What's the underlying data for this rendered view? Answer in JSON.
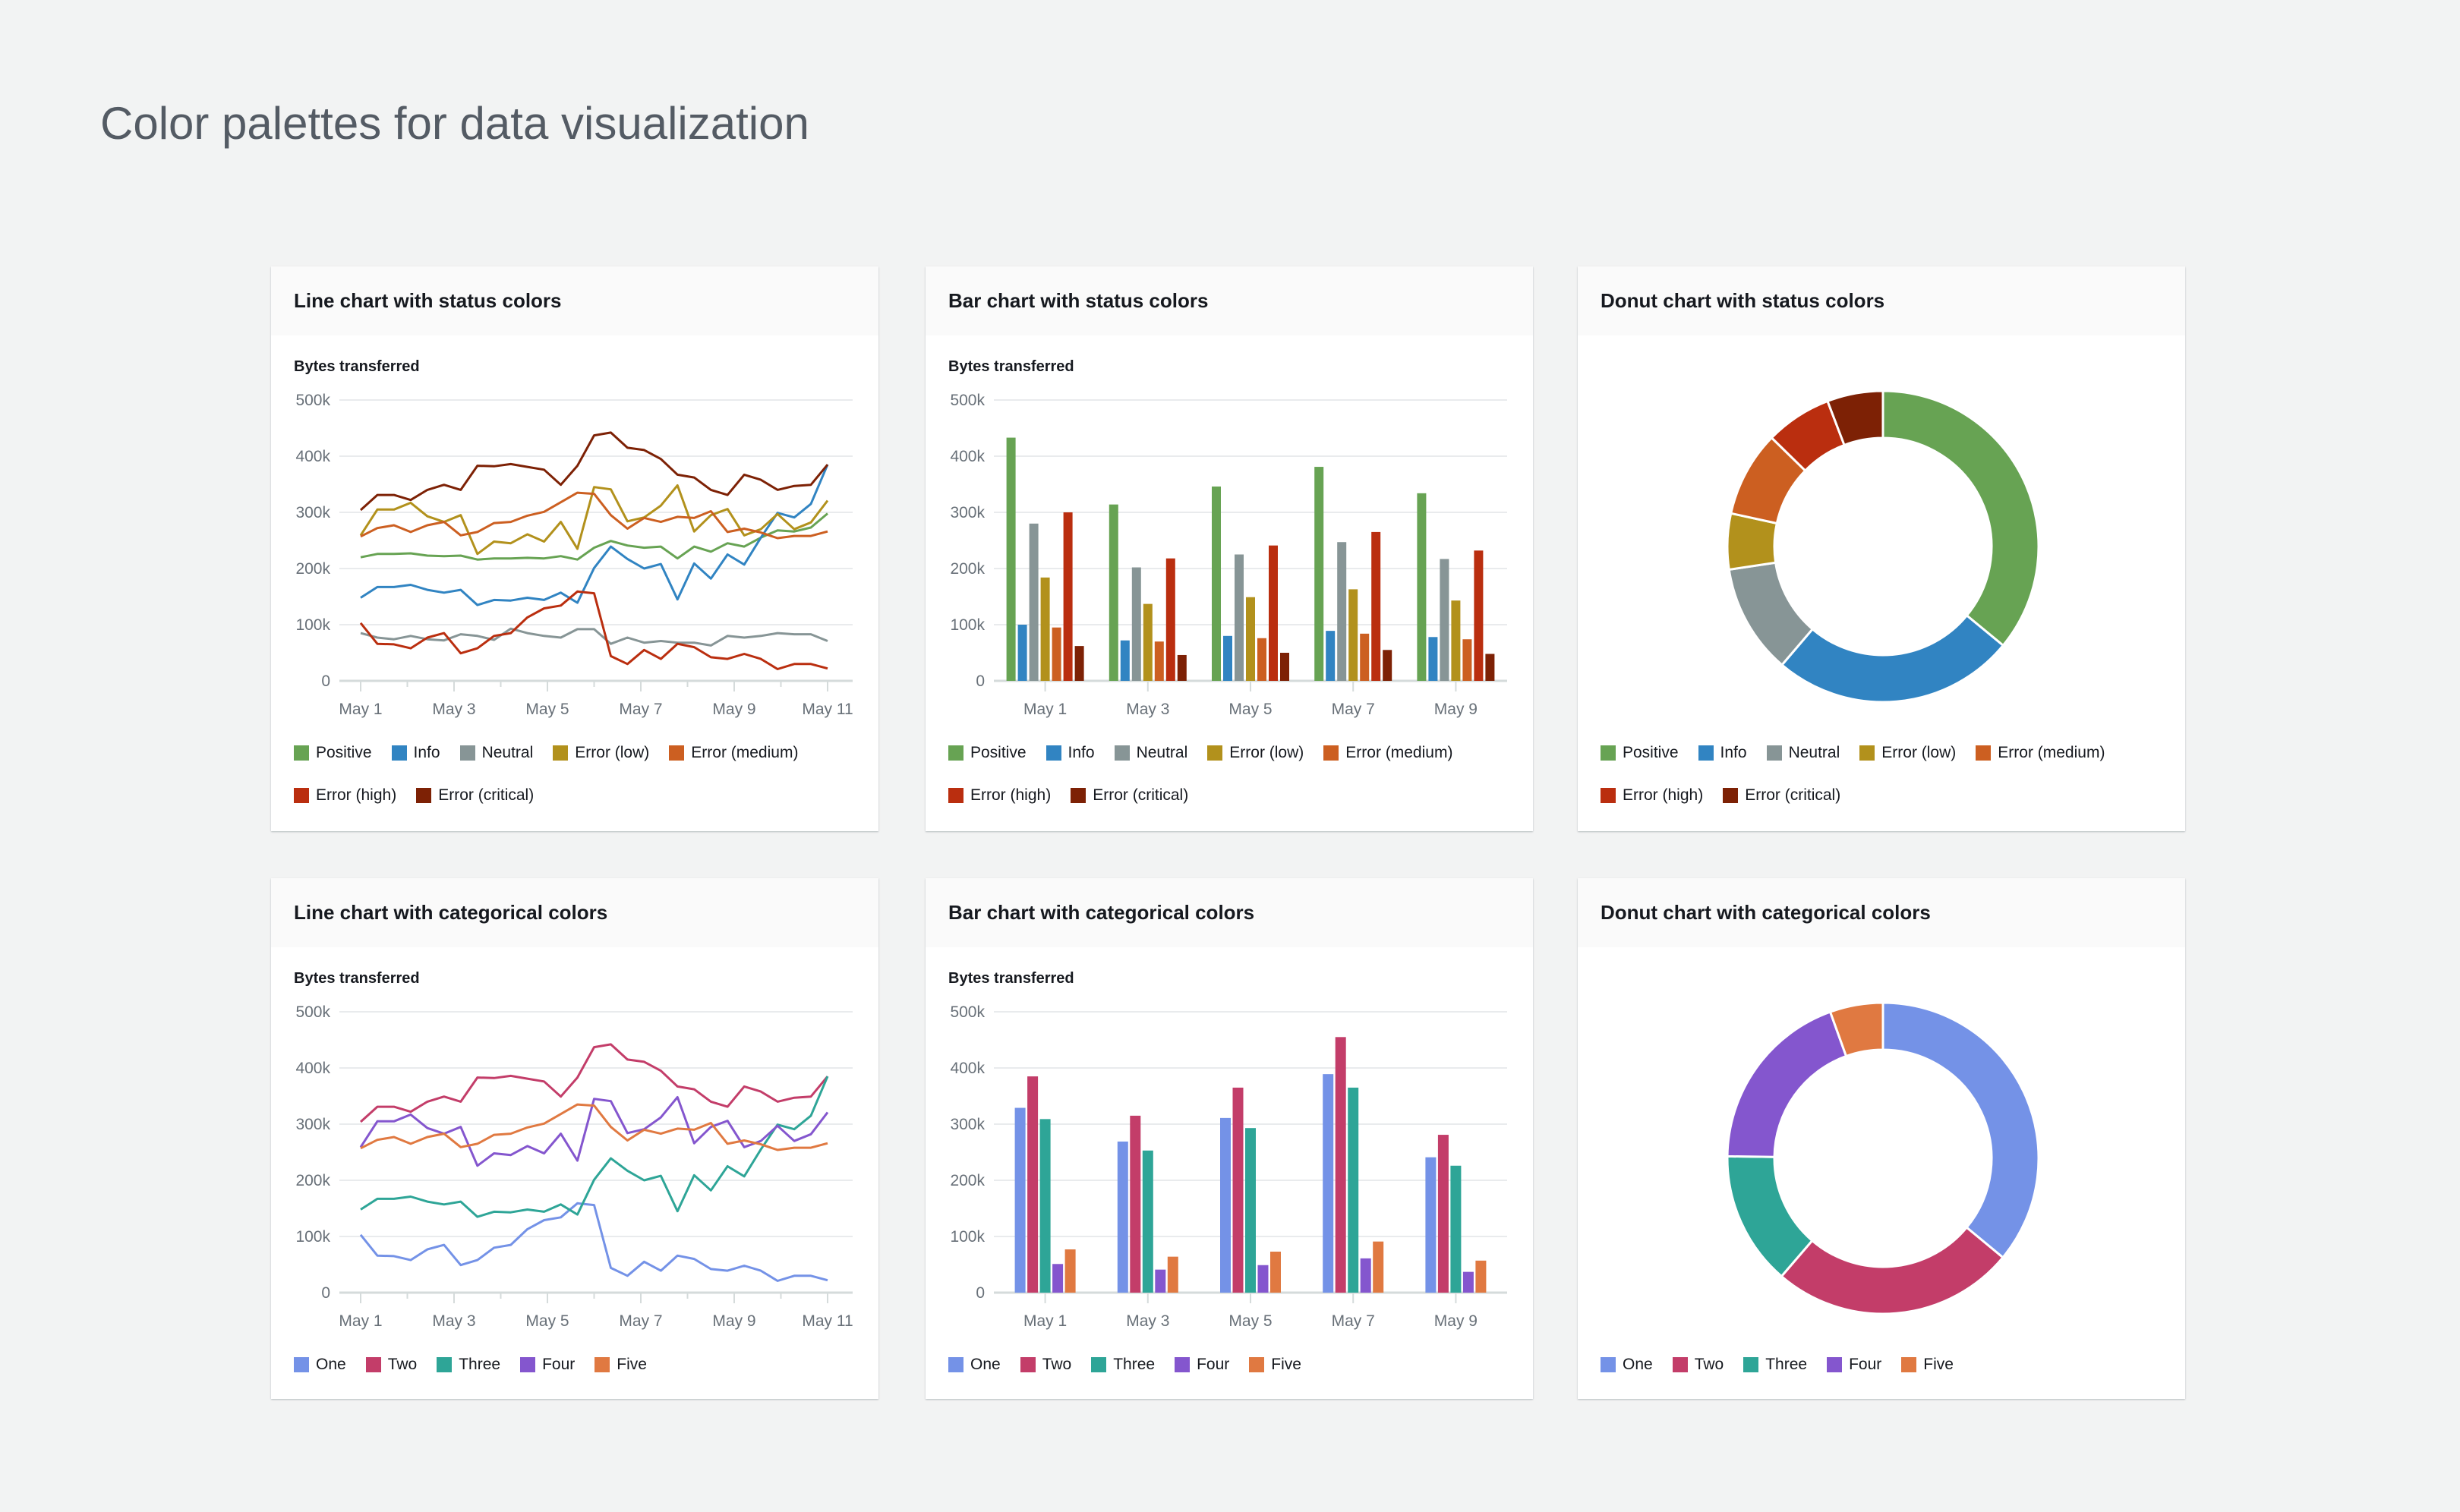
{
  "page_title": "Color palettes for data visualization",
  "palettes": {
    "status": {
      "Positive": "#67a353",
      "Info": "#3184c2",
      "Neutral": "#879596",
      "Error (low)": "#b2911c",
      "Error (medium)": "#cc5f21",
      "Error (high)": "#ba2e0f",
      "Error (critical)": "#7d2105"
    },
    "categorical": {
      "One": "#7492e7",
      "Two": "#c33d69",
      "Three": "#2ea597",
      "Four": "#8456ce",
      "Five": "#e07941"
    }
  },
  "chart_data": [
    {
      "id": "line-status",
      "type": "line",
      "title": "Line chart with status colors",
      "ylabel": "Bytes transferred",
      "ylim": [
        0,
        500000
      ],
      "yticks": [
        "0",
        "100k",
        "200k",
        "300k",
        "400k",
        "500k"
      ],
      "x_range": [
        "May 1",
        "May 11"
      ],
      "xticks": [
        "May 1",
        "May 3",
        "May 5",
        "May 7",
        "May 9",
        "May 11"
      ],
      "grid": true,
      "legend": "bottom",
      "series": [
        {
          "name": "Positive",
          "color": "#67a353",
          "values": [
            220,
            226,
            226,
            227,
            223,
            222,
            223,
            216,
            218,
            218,
            219,
            218,
            222,
            216,
            237,
            249,
            241,
            237,
            239,
            218,
            239,
            230,
            245,
            239,
            255,
            268,
            266,
            273,
            298
          ]
        },
        {
          "name": "Info",
          "color": "#3184c2",
          "values": [
            148,
            167,
            167,
            171,
            162,
            157,
            162,
            135,
            144,
            143,
            148,
            144,
            157,
            139,
            201,
            239,
            217,
            200,
            208,
            145,
            209,
            182,
            225,
            207,
            255,
            299,
            291,
            315,
            385
          ]
        },
        {
          "name": "Neutral",
          "color": "#879596",
          "values": [
            85,
            77,
            74,
            80,
            74,
            72,
            83,
            80,
            73,
            93,
            85,
            80,
            77,
            92,
            92,
            66,
            77,
            68,
            71,
            68,
            68,
            63,
            80,
            77,
            80,
            85,
            83,
            83,
            71
          ]
        },
        {
          "name": "Error (low)",
          "color": "#b2911c",
          "values": [
            259,
            305,
            305,
            317,
            293,
            283,
            295,
            226,
            248,
            245,
            261,
            248,
            283,
            235,
            345,
            341,
            284,
            291,
            312,
            348,
            266,
            295,
            306,
            259,
            270,
            297,
            270,
            282,
            321
          ]
        },
        {
          "name": "Error (medium)",
          "color": "#cc5f21",
          "values": [
            257,
            272,
            277,
            265,
            277,
            283,
            259,
            265,
            281,
            283,
            294,
            301,
            318,
            335,
            333,
            295,
            271,
            290,
            283,
            292,
            290,
            302,
            265,
            271,
            264,
            254,
            258,
            258,
            266
          ]
        },
        {
          "name": "Error (high)",
          "color": "#ba2e0f",
          "values": [
            103,
            66,
            65,
            58,
            77,
            85,
            49,
            58,
            80,
            85,
            113,
            129,
            134,
            159,
            156,
            44,
            30,
            55,
            39,
            66,
            60,
            42,
            39,
            48,
            39,
            21,
            30,
            30,
            22
          ]
        },
        {
          "name": "Error (critical)",
          "color": "#7d2105",
          "values": [
            304,
            331,
            331,
            322,
            340,
            349,
            340,
            383,
            382,
            386,
            381,
            376,
            349,
            383,
            437,
            442,
            415,
            411,
            395,
            367,
            362,
            340,
            331,
            367,
            358,
            340,
            347,
            349,
            385
          ]
        }
      ]
    },
    {
      "id": "bar-status",
      "type": "bar",
      "title": "Bar chart with status colors",
      "ylabel": "Bytes transferred",
      "ylim": [
        0,
        500000
      ],
      "yticks": [
        "0",
        "100k",
        "200k",
        "300k",
        "400k",
        "500k"
      ],
      "categories": [
        "May 1",
        "May 3",
        "May 5",
        "May 7",
        "May 9"
      ],
      "grid": true,
      "legend": "bottom",
      "series": [
        {
          "name": "Positive",
          "color": "#67a353",
          "values": [
            433,
            314,
            346,
            381,
            334
          ]
        },
        {
          "name": "Info",
          "color": "#3184c2",
          "values": [
            100,
            72,
            80,
            89,
            78
          ]
        },
        {
          "name": "Neutral",
          "color": "#879596",
          "values": [
            280,
            202,
            225,
            247,
            217
          ]
        },
        {
          "name": "Error (low)",
          "color": "#b2911c",
          "values": [
            184,
            137,
            149,
            163,
            143
          ]
        },
        {
          "name": "Error (medium)",
          "color": "#cc5f21",
          "values": [
            95,
            70,
            76,
            84,
            74
          ]
        },
        {
          "name": "Error (high)",
          "color": "#ba2e0f",
          "values": [
            300,
            218,
            241,
            265,
            232
          ]
        },
        {
          "name": "Error (critical)",
          "color": "#7d2105",
          "values": [
            62,
            46,
            50,
            55,
            48
          ]
        }
      ]
    },
    {
      "id": "donut-status",
      "type": "pie",
      "title": "Donut chart with status colors",
      "legend": "bottom",
      "series": [
        {
          "name": "Positive",
          "color": "#67a353",
          "value": 36.0
        },
        {
          "name": "Info",
          "color": "#3184c2",
          "value": 25.3
        },
        {
          "name": "Neutral",
          "color": "#879596",
          "value": 11.4
        },
        {
          "name": "Error (low)",
          "color": "#b2911c",
          "value": 5.8
        },
        {
          "name": "Error (medium)",
          "color": "#cc5f21",
          "value": 8.9
        },
        {
          "name": "Error (high)",
          "color": "#ba2e0f",
          "value": 6.9
        },
        {
          "name": "Error (critical)",
          "color": "#7d2105",
          "value": 5.8
        }
      ]
    },
    {
      "id": "line-cat",
      "type": "line",
      "title": "Line chart with categorical colors",
      "ylabel": "Bytes transferred",
      "ylim": [
        0,
        500000
      ],
      "yticks": [
        "0",
        "100k",
        "200k",
        "300k",
        "400k",
        "500k"
      ],
      "x_range": [
        "May 1",
        "May 11"
      ],
      "xticks": [
        "May 1",
        "May 3",
        "May 5",
        "May 7",
        "May 9",
        "May 11"
      ],
      "grid": true,
      "legend": "bottom",
      "series": [
        {
          "name": "One",
          "color": "#7492e7",
          "values": [
            103,
            66,
            65,
            58,
            77,
            85,
            49,
            58,
            80,
            85,
            113,
            129,
            134,
            159,
            156,
            44,
            30,
            55,
            39,
            66,
            60,
            42,
            39,
            48,
            39,
            21,
            30,
            30,
            22
          ]
        },
        {
          "name": "Two",
          "color": "#c33d69",
          "values": [
            304,
            331,
            331,
            322,
            340,
            349,
            340,
            383,
            382,
            386,
            381,
            376,
            349,
            383,
            437,
            442,
            415,
            411,
            395,
            367,
            362,
            340,
            331,
            367,
            358,
            340,
            347,
            349,
            385
          ]
        },
        {
          "name": "Three",
          "color": "#2ea597",
          "values": [
            148,
            167,
            167,
            171,
            162,
            157,
            162,
            135,
            144,
            143,
            148,
            144,
            157,
            139,
            201,
            239,
            217,
            200,
            208,
            145,
            209,
            182,
            225,
            207,
            255,
            299,
            291,
            315,
            385
          ]
        },
        {
          "name": "Four",
          "color": "#8456ce",
          "values": [
            259,
            305,
            305,
            317,
            293,
            283,
            295,
            226,
            248,
            245,
            261,
            248,
            283,
            235,
            345,
            341,
            284,
            291,
            312,
            348,
            266,
            295,
            306,
            259,
            270,
            297,
            270,
            282,
            321
          ]
        },
        {
          "name": "Five",
          "color": "#e07941",
          "values": [
            257,
            272,
            277,
            265,
            277,
            283,
            259,
            265,
            281,
            283,
            294,
            301,
            318,
            335,
            333,
            295,
            271,
            290,
            283,
            292,
            290,
            302,
            265,
            271,
            264,
            254,
            258,
            258,
            266
          ]
        }
      ]
    },
    {
      "id": "bar-cat",
      "type": "bar",
      "title": "Bar chart with categorical colors",
      "ylabel": "Bytes transferred",
      "ylim": [
        0,
        500000
      ],
      "yticks": [
        "0",
        "100k",
        "200k",
        "300k",
        "400k",
        "500k"
      ],
      "categories": [
        "May 1",
        "May 3",
        "May 5",
        "May 7",
        "May 9"
      ],
      "grid": true,
      "legend": "bottom",
      "series": [
        {
          "name": "One",
          "color": "#7492e7",
          "values": [
            329,
            269,
            311,
            389,
            241
          ]
        },
        {
          "name": "Two",
          "color": "#c33d69",
          "values": [
            385,
            315,
            365,
            455,
            281
          ]
        },
        {
          "name": "Three",
          "color": "#2ea597",
          "values": [
            309,
            253,
            293,
            365,
            226
          ]
        },
        {
          "name": "Four",
          "color": "#8456ce",
          "values": [
            51,
            41,
            49,
            61,
            37
          ]
        },
        {
          "name": "Five",
          "color": "#e07941",
          "values": [
            77,
            64,
            73,
            91,
            57
          ]
        }
      ]
    },
    {
      "id": "donut-cat",
      "type": "pie",
      "title": "Donut chart with categorical colors",
      "legend": "bottom",
      "series": [
        {
          "name": "One",
          "color": "#7492e7",
          "value": 36.0
        },
        {
          "name": "Two",
          "color": "#c33d69",
          "value": 25.3
        },
        {
          "name": "Three",
          "color": "#2ea597",
          "value": 13.9
        },
        {
          "name": "Four",
          "color": "#8456ce",
          "value": 19.3
        },
        {
          "name": "Five",
          "color": "#e07941",
          "value": 5.5
        }
      ]
    }
  ]
}
